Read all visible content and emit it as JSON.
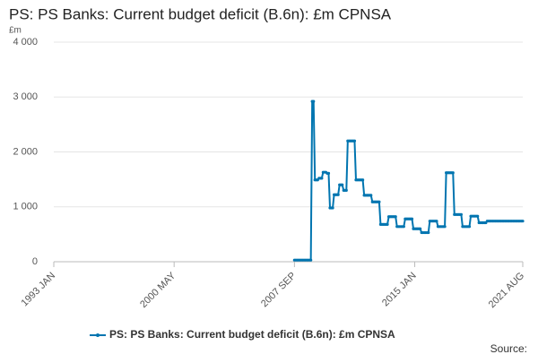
{
  "chart_data": {
    "type": "line",
    "title": "PS: PS Banks: Current budget deficit (B.6n): £m CPNSA",
    "y_unit": "£m",
    "source": "Source:",
    "categories": [
      "1993 JAN",
      null,
      null,
      null,
      null,
      null,
      null,
      null,
      null,
      null,
      null,
      null,
      null,
      null,
      null,
      null,
      null,
      null,
      null,
      null,
      null,
      null,
      null,
      null,
      null,
      null,
      null,
      null,
      null,
      null,
      null,
      null,
      null,
      null,
      null,
      null,
      null,
      null,
      null,
      null,
      null,
      null,
      null,
      null,
      null,
      null,
      null,
      null,
      null,
      null,
      null,
      null,
      null,
      null,
      null,
      null,
      null,
      null,
      null,
      null,
      null,
      null,
      null,
      null,
      null,
      null,
      null,
      null,
      null,
      null,
      null,
      null,
      null,
      null,
      null,
      null,
      null,
      null,
      null,
      null,
      null,
      null,
      null,
      null,
      null,
      null,
      null,
      null,
      "2000 MAY",
      null,
      null,
      null,
      null,
      null,
      null,
      null,
      null,
      null,
      null,
      null,
      null,
      null,
      null,
      null,
      null,
      null,
      null,
      null,
      null,
      null,
      null,
      null,
      null,
      null,
      null,
      null,
      null,
      null,
      null,
      null,
      null,
      null,
      null,
      null,
      null,
      null,
      null,
      null,
      null,
      null,
      null,
      null,
      null,
      null,
      null,
      null,
      null,
      null,
      null,
      null,
      null,
      null,
      null,
      null,
      null,
      null,
      null,
      null,
      null,
      null,
      null,
      null,
      null,
      null,
      null,
      null,
      null,
      null,
      null,
      null,
      null,
      null,
      null,
      null,
      null,
      null,
      null,
      null,
      null,
      null,
      null,
      null,
      null,
      null,
      null,
      null,
      "2007 SEP",
      null,
      null,
      null,
      null,
      null,
      null,
      null,
      null,
      null,
      null,
      null,
      null,
      null,
      null,
      null,
      null,
      null,
      null,
      null,
      null,
      null,
      null,
      null,
      null,
      null,
      null,
      null,
      null,
      null,
      null,
      null,
      null,
      null,
      null,
      null,
      null,
      null,
      null,
      null,
      null,
      null,
      null,
      null,
      null,
      null,
      null,
      null,
      null,
      null,
      null,
      null,
      null,
      null,
      null,
      null,
      null,
      null,
      null,
      null,
      null,
      null,
      null,
      null,
      null,
      null,
      null,
      null,
      null,
      null,
      null,
      null,
      null,
      null,
      null,
      null,
      null,
      null,
      null,
      null,
      null,
      null,
      null,
      null,
      null,
      null,
      null,
      null,
      "2015 JAN",
      null,
      null,
      null,
      null,
      null,
      null,
      null,
      null,
      null,
      null,
      null,
      null,
      null,
      null,
      null,
      null,
      null,
      null,
      null,
      null,
      null,
      null,
      null,
      null,
      null,
      null,
      null,
      null,
      null,
      null,
      null,
      null,
      null,
      null,
      null,
      null,
      null,
      null,
      null,
      null,
      null,
      null,
      null,
      null,
      null,
      null,
      null,
      null,
      null,
      null,
      null,
      null,
      null,
      null,
      null,
      null,
      null,
      null,
      null,
      null,
      null,
      null,
      null,
      null,
      null,
      null,
      null,
      null,
      null,
      null,
      null,
      null,
      null,
      null,
      null,
      null,
      null,
      null,
      "2021 AUG"
    ],
    "series": [
      {
        "name": "PS: PS Banks: Current budget deficit (B.6n): £m CPNSA",
        "color": "#0075b0",
        "values": [
          null,
          null,
          null,
          null,
          null,
          null,
          null,
          null,
          null,
          null,
          null,
          null,
          null,
          null,
          null,
          null,
          null,
          null,
          null,
          null,
          null,
          null,
          null,
          null,
          null,
          null,
          null,
          null,
          null,
          null,
          null,
          null,
          null,
          null,
          null,
          null,
          null,
          null,
          null,
          null,
          null,
          null,
          null,
          null,
          null,
          null,
          null,
          null,
          null,
          null,
          null,
          null,
          null,
          null,
          null,
          null,
          null,
          null,
          null,
          null,
          null,
          null,
          null,
          null,
          null,
          null,
          null,
          null,
          null,
          null,
          null,
          null,
          null,
          null,
          null,
          null,
          null,
          null,
          null,
          null,
          null,
          null,
          null,
          null,
          null,
          null,
          null,
          null,
          null,
          null,
          null,
          null,
          null,
          null,
          null,
          null,
          null,
          null,
          null,
          null,
          null,
          null,
          null,
          null,
          null,
          null,
          null,
          null,
          null,
          null,
          null,
          null,
          null,
          null,
          null,
          null,
          null,
          null,
          null,
          null,
          null,
          null,
          null,
          null,
          null,
          null,
          null,
          null,
          null,
          null,
          null,
          null,
          null,
          null,
          null,
          null,
          null,
          null,
          null,
          null,
          null,
          null,
          null,
          null,
          null,
          null,
          null,
          null,
          null,
          null,
          null,
          null,
          null,
          null,
          null,
          null,
          null,
          null,
          null,
          null,
          null,
          null,
          null,
          null,
          null,
          null,
          null,
          null,
          null,
          null,
          null,
          null,
          null,
          null,
          null,
          null,
          30,
          30,
          30,
          30,
          30,
          30,
          30,
          30,
          30,
          30,
          30,
          30,
          30,
          2920,
          2920,
          1490,
          1490,
          1490,
          1520,
          1520,
          1520,
          1630,
          1630,
          1630,
          1610,
          1610,
          980,
          980,
          980,
          1220,
          1220,
          1220,
          1220,
          1400,
          1400,
          1400,
          1300,
          1300,
          1300,
          2200,
          2200,
          2200,
          2200,
          2200,
          2200,
          1490,
          1490,
          1490,
          1490,
          1490,
          1490,
          1210,
          1210,
          1210,
          1210,
          1210,
          1210,
          1090,
          1090,
          1090,
          1090,
          1090,
          1090,
          680,
          680,
          680,
          680,
          680,
          680,
          820,
          820,
          820,
          820,
          820,
          820,
          640,
          640,
          640,
          640,
          640,
          640,
          780,
          780,
          780,
          780,
          780,
          780,
          600,
          600,
          600,
          600,
          600,
          600,
          530,
          530,
          530,
          530,
          530,
          530,
          740,
          740,
          740,
          740,
          740,
          740,
          640,
          640,
          640,
          640,
          640,
          640,
          1620,
          1620,
          1620,
          1620,
          1620,
          1620,
          860,
          860,
          860,
          860,
          860,
          860,
          640,
          640,
          640,
          640,
          640,
          640,
          830,
          830,
          830,
          830,
          830,
          830,
          710,
          710,
          710,
          710,
          710,
          710,
          740,
          740,
          740,
          740,
          740,
          740,
          740,
          740,
          740,
          740,
          740,
          740,
          740,
          740,
          740,
          740,
          740,
          740,
          740,
          740,
          740,
          740,
          740,
          740,
          740,
          740,
          740
        ]
      }
    ],
    "ylim": [
      0,
      4000
    ],
    "yticks": [
      0,
      {
        "value": 1000,
        "label": "1 000"
      },
      {
        "value": 2000,
        "label": "2 000"
      },
      {
        "value": 3000,
        "label": "3 000"
      },
      {
        "value": 4000,
        "label": "4 000"
      }
    ],
    "grid": true,
    "legend": "bottom"
  }
}
